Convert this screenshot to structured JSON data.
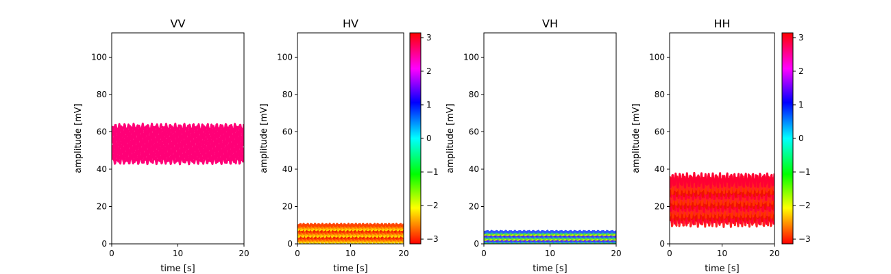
{
  "colorbar_ticks": [
    "3",
    "2",
    "1",
    "0",
    "−1",
    "−2",
    "−3"
  ],
  "chart_data": [
    {
      "type": "band",
      "title": "VV",
      "xlabel": "time [s]",
      "ylabel": "amplitude [mV]",
      "xlim": [
        0,
        20
      ],
      "ylim": [
        0,
        113
      ],
      "xticks": [
        0,
        10,
        20
      ],
      "yticks": [
        0,
        20,
        40,
        60,
        80,
        100
      ],
      "colorbar": false,
      "band": {
        "lower": 45,
        "upper": 62,
        "oscillation_amp": 1.5,
        "colors": [
          "#ff0077"
        ]
      }
    },
    {
      "type": "band",
      "title": "HV",
      "xlabel": "time [s]",
      "ylabel": "amplitude [mV]",
      "xlim": [
        0,
        20
      ],
      "ylim": [
        0,
        113
      ],
      "xticks": [
        0,
        10,
        20
      ],
      "yticks": [
        0,
        20,
        40,
        60,
        80,
        100
      ],
      "colorbar": true,
      "band": {
        "lower": 1,
        "upper": 10,
        "oscillation_amp": 0.5,
        "colors": [
          "#ffdd00",
          "#ffaa00",
          "#ff7700",
          "#ff4400",
          "#ee2200"
        ]
      }
    },
    {
      "type": "band",
      "title": "VH",
      "xlabel": "time [s]",
      "ylabel": "amplitude [mV]",
      "xlim": [
        0,
        20
      ],
      "ylim": [
        0,
        113
      ],
      "xticks": [
        0,
        10,
        20
      ],
      "yticks": [
        0,
        20,
        40,
        60,
        80,
        100
      ],
      "colorbar": false,
      "band": {
        "lower": 0,
        "upper": 6.5,
        "oscillation_amp": 0.3,
        "colors": [
          "#ccee00",
          "#66dd33",
          "#22bbaa",
          "#3355ff",
          "#5522ee"
        ]
      }
    },
    {
      "type": "band",
      "title": "HH",
      "xlabel": "time [s]",
      "ylabel": "amplitude [mV]",
      "xlim": [
        0,
        20
      ],
      "ylim": [
        0,
        113
      ],
      "xticks": [
        0,
        10,
        20
      ],
      "yticks": [
        0,
        20,
        40,
        60,
        80,
        100
      ],
      "colorbar": true,
      "band": {
        "lower": 13,
        "upper": 34,
        "oscillation_amp": 2.5,
        "colors": [
          "#ff2222",
          "#ff0033",
          "#ee1100",
          "#ff3300"
        ]
      }
    }
  ]
}
